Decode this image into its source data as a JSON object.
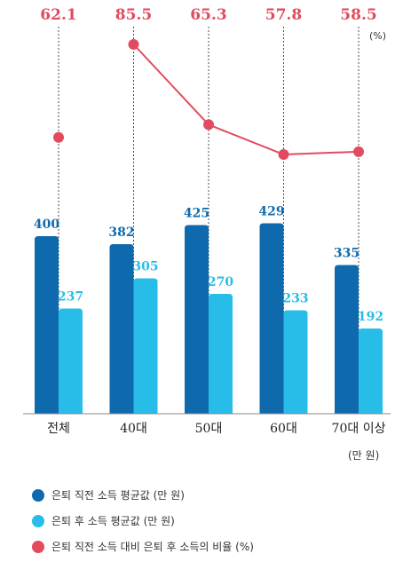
{
  "chart_data": {
    "type": "bar",
    "categories": [
      "전체",
      "40대",
      "50대",
      "60대",
      "70대 이상"
    ],
    "series": [
      {
        "name": "은퇴 직전 소득 평균값 (만 원)",
        "values": [
          400,
          382,
          425,
          429,
          335
        ],
        "color": "#0f6aad"
      },
      {
        "name": "은퇴 후 소득 평균값 (만 원)",
        "values": [
          237,
          305,
          270,
          233,
          192
        ],
        "color": "#28bde8"
      }
    ],
    "ratio_series": {
      "name": "은퇴 직전 소득 대비 은퇴 후 소득의 비율 (%)",
      "values": [
        62.1,
        85.5,
        65.3,
        57.8,
        58.5
      ],
      "value_labels": [
        "62.1",
        "85.5",
        "65.3",
        "57.8",
        "58.5"
      ],
      "color": "#e24b5e",
      "connected_from_index": 1,
      "unit": "(%)"
    },
    "bar_unit": "(만 원)",
    "ylim": [
      0,
      460
    ],
    "legend_position": "bottom-left"
  }
}
